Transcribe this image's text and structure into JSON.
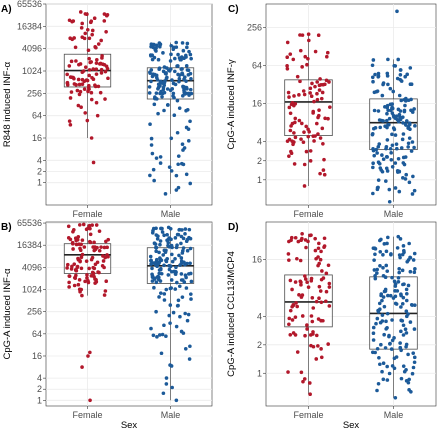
{
  "colors": {
    "Female": "#b2182b",
    "Male": "#1c5a99",
    "grid": "#ebebeb",
    "box_fill": "#ffffff",
    "box_stroke": "#4d4d4d"
  },
  "chart_data": [
    {
      "type": "box",
      "panel": "A)",
      "ylabel": "R848 induced INF-α",
      "xlabel": "",
      "y_scale": "log2",
      "ylim": [
        0.25,
        65536
      ],
      "yticks": [
        1,
        2,
        4,
        16,
        64,
        256,
        1024,
        4096,
        16384,
        65536
      ],
      "show_x_tick_labels": true,
      "categories": [
        "Female",
        "Male"
      ],
      "series": [
        {
          "category": "Female",
          "min": 16,
          "q1": 380,
          "median": 1050,
          "q3": 2900,
          "max": 40000,
          "n_points": 105,
          "outliers": [
            3.5
          ]
        },
        {
          "category": "Male",
          "min": 0.5,
          "q1": 180,
          "median": 560,
          "q3": 1250,
          "max": 6000,
          "n_points": 175,
          "outliers": []
        }
      ]
    },
    {
      "type": "box",
      "panel": "C)",
      "ylabel": "CpG-A induced INF-γ",
      "xlabel": "",
      "y_scale": "log2",
      "ylim": [
        0.4,
        600
      ],
      "yticks": [
        1,
        2,
        4,
        16,
        64,
        256
      ],
      "show_x_tick_labels": true,
      "categories": [
        "Female",
        "Male"
      ],
      "series": [
        {
          "category": "Female",
          "min": 0.8,
          "q1": 5,
          "median": 17,
          "q3": 38,
          "max": 200,
          "n_points": 100,
          "outliers": []
        },
        {
          "category": "Male",
          "min": 0.45,
          "q1": 3,
          "median": 8,
          "q3": 19,
          "max": 80,
          "n_points": 165,
          "outliers": [
            460
          ]
        }
      ]
    },
    {
      "type": "box",
      "panel": "B)",
      "ylabel": "CpG-A induced INF-α",
      "xlabel": "Sex",
      "y_scale": "log2",
      "ylim": [
        0.7,
        70000
      ],
      "yticks": [
        1,
        2,
        4,
        16,
        64,
        256,
        1024,
        4096,
        16384,
        65536
      ],
      "show_x_tick_labels": true,
      "categories": [
        "Female",
        "Male"
      ],
      "series": [
        {
          "category": "Female",
          "min": 700,
          "q1": 2800,
          "median": 9000,
          "q3": 18000,
          "max": 60000,
          "n_points": 105,
          "outliers": [
            20,
            16,
            8,
            1
          ]
        },
        {
          "category": "Male",
          "min": 1,
          "q1": 1500,
          "median": 4500,
          "q3": 14000,
          "max": 50000,
          "n_points": 175,
          "outliers": []
        }
      ]
    },
    {
      "type": "box",
      "panel": "D)",
      "ylabel": "CpG-A induced CCL13/MCP4",
      "xlabel": "Sex",
      "y_scale": "log2",
      "ylim": [
        0.45,
        40
      ],
      "yticks": [
        1,
        2,
        4,
        16
      ],
      "show_x_tick_labels": true,
      "categories": [
        "Female",
        "Male"
      ],
      "series": [
        {
          "category": "Female",
          "min": 0.6,
          "q1": 3.1,
          "median": 5.7,
          "q3": 11,
          "max": 30,
          "n_points": 100,
          "outliers": []
        },
        {
          "category": "Male",
          "min": 0.55,
          "q1": 1.8,
          "median": 4.3,
          "q3": 10.5,
          "max": 28,
          "n_points": 160,
          "outliers": []
        }
      ]
    }
  ]
}
